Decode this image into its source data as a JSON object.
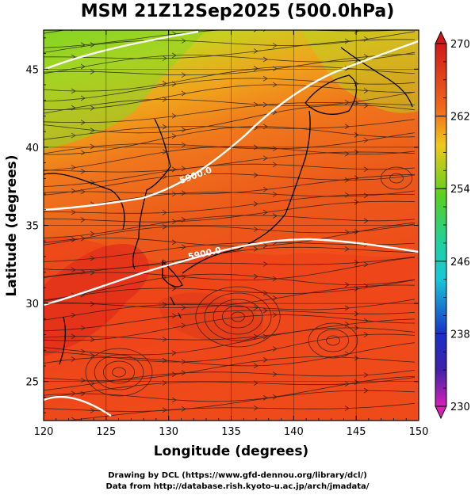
{
  "title": "MSM 21Z12Sep2025 (500.0hPa)",
  "xlabel": "Longitude (degrees)",
  "ylabel": "Latitude  (degrees)",
  "credit_line1": "Drawing by DCL (https://www.gfd-dennou.org/library/dcl/)",
  "credit_line2": "Data from http://database.rish.kyoto-u.ac.jp/arch/jmadata/",
  "contour_label": "5900.0",
  "colors": {
    "max_red": "#d01818",
    "red": "#e83a1a",
    "orange": "#f06a1c",
    "yellow": "#f0c81a",
    "green": "#58d020",
    "cyan": "#18c8d8",
    "blue": "#1830c8",
    "magenta": "#d820b8",
    "coast": "#000000",
    "contour": "#ffffff"
  },
  "chart_data": {
    "type": "heatmap",
    "variable": "temperature at 500.0hPa with wind streamlines",
    "xlim": [
      120,
      150
    ],
    "ylim": [
      22.5,
      47.5
    ],
    "x_ticks": [
      "120",
      "125",
      "130",
      "135",
      "140",
      "145",
      "150"
    ],
    "y_ticks": [
      "25",
      "30",
      "35",
      "40",
      "45"
    ],
    "colorbar": {
      "min": 230,
      "max": 270,
      "labels": [
        "270",
        "262",
        "254",
        "246",
        "238",
        "230"
      ]
    },
    "grid": true
  }
}
